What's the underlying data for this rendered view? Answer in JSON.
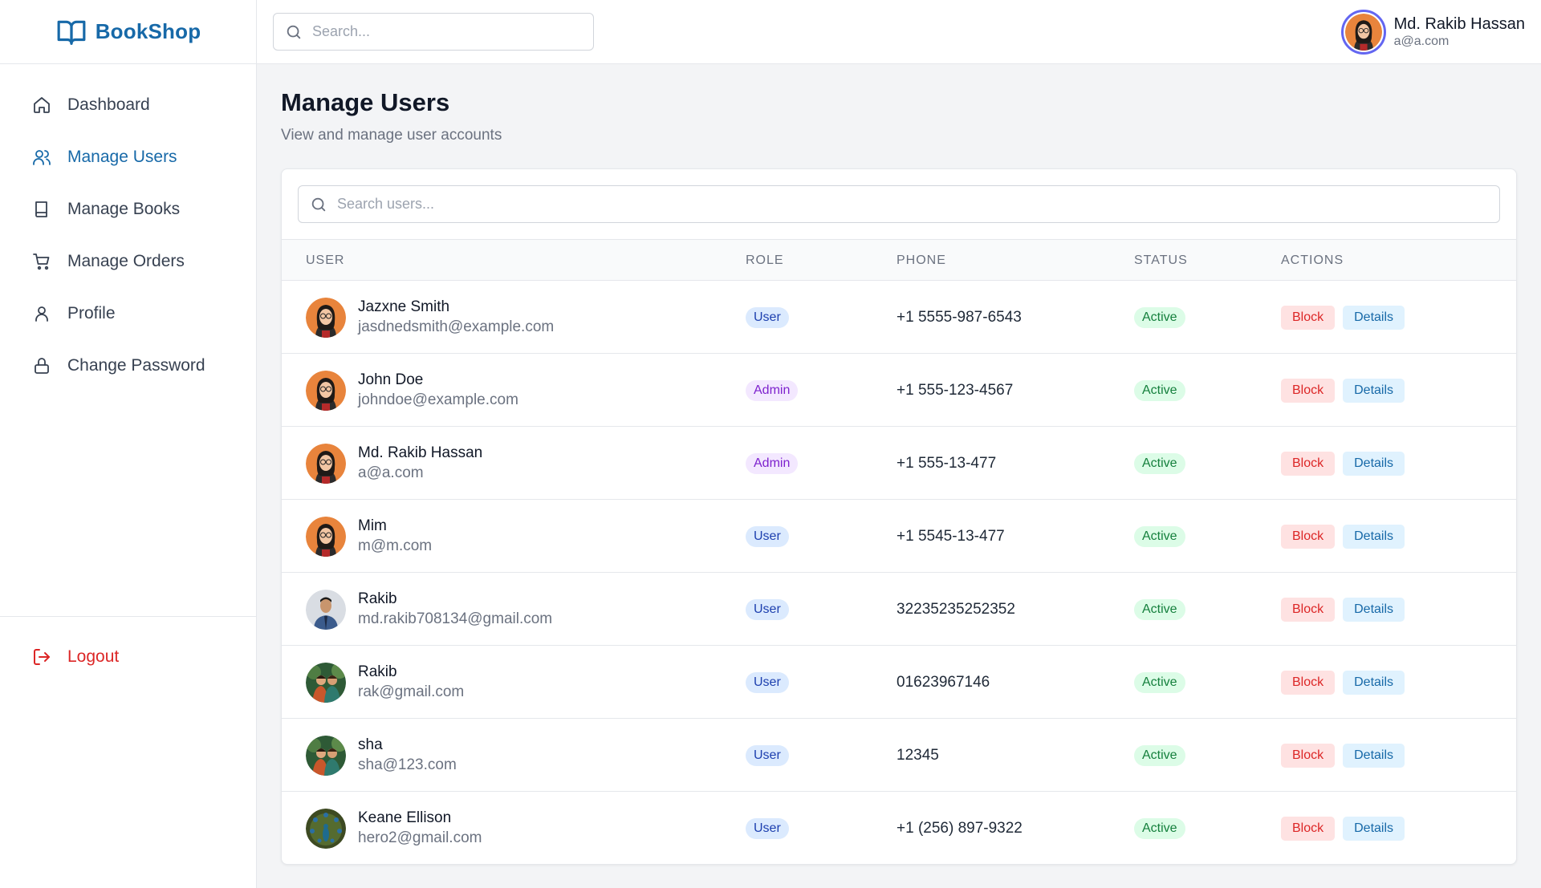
{
  "brand": {
    "name": "BookShop",
    "color": "#1769a8"
  },
  "header": {
    "search_placeholder": "Search...",
    "user_name": "Md. Rakib Hassan",
    "user_email": "a@a.com"
  },
  "sidebar": {
    "items": [
      {
        "label": "Dashboard",
        "icon": "home-icon",
        "active": false
      },
      {
        "label": "Manage Users",
        "icon": "users-icon",
        "active": true
      },
      {
        "label": "Manage Books",
        "icon": "book-icon",
        "active": false
      },
      {
        "label": "Manage Orders",
        "icon": "cart-icon",
        "active": false
      },
      {
        "label": "Profile",
        "icon": "user-icon",
        "active": false
      },
      {
        "label": "Change Password",
        "icon": "lock-icon",
        "active": false
      }
    ],
    "logout_label": "Logout"
  },
  "main": {
    "title": "Manage Users",
    "subtitle": "View and manage user accounts",
    "search_placeholder": "Search users...",
    "columns": [
      "USER",
      "ROLE",
      "PHONE",
      "STATUS",
      "ACTIONS"
    ],
    "block_label": "Block",
    "details_label": "Details",
    "users": [
      {
        "name": "Jazxne Smith",
        "email": "jasdnedsmith@example.com",
        "role": "User",
        "phone": "+1 5555-987-6543",
        "status": "Active",
        "avatar": "woman-glasses-avatar"
      },
      {
        "name": "John Doe",
        "email": "johndoe@example.com",
        "role": "Admin",
        "phone": "+1 555-123-4567",
        "status": "Active",
        "avatar": "woman-glasses-avatar"
      },
      {
        "name": "Md. Rakib Hassan",
        "email": "a@a.com",
        "role": "Admin",
        "phone": "+1 555-13-477",
        "status": "Active",
        "avatar": "woman-glasses-avatar"
      },
      {
        "name": "Mim",
        "email": "m@m.com",
        "role": "User",
        "phone": "+1 5545-13-477",
        "status": "Active",
        "avatar": "woman-glasses-avatar"
      },
      {
        "name": "Rakib",
        "email": "md.rakib708134@gmail.com",
        "role": "User",
        "phone": "32235235252352",
        "status": "Active",
        "avatar": "man-photo-avatar"
      },
      {
        "name": "Rakib",
        "email": "rak@gmail.com",
        "role": "User",
        "phone": "01623967146",
        "status": "Active",
        "avatar": "couple-painting-avatar"
      },
      {
        "name": "sha",
        "email": "sha@123.com",
        "role": "User",
        "phone": "12345",
        "status": "Active",
        "avatar": "couple-painting-avatar"
      },
      {
        "name": "Keane Ellison",
        "email": "hero2@gmail.com",
        "role": "User",
        "phone": "+1 (256) 897-9322",
        "status": "Active",
        "avatar": "peacock-avatar"
      }
    ]
  }
}
